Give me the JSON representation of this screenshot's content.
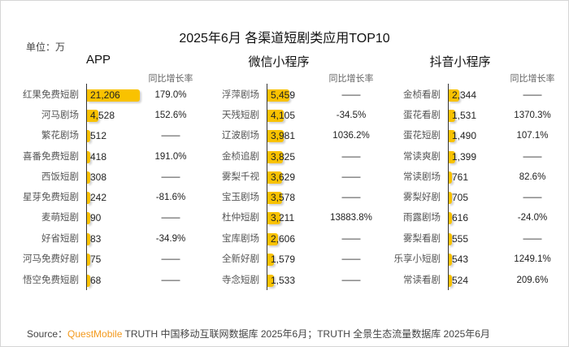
{
  "chart_data": {
    "type": "bar",
    "title": "2025年6月 各渠道短剧类应用TOP10",
    "unit_label": "单位：万",
    "growth_header": "同比增长率",
    "colors": {
      "bar": "#f9c200",
      "brand": "#f39a1e"
    },
    "panels": [
      {
        "name": "APP",
        "categories": [
          "红果免费短剧",
          "河马剧场",
          "繁花剧场",
          "喜番免费短剧",
          "西饭短剧",
          "星芽免费短剧",
          "麦萌短剧",
          "好省短剧",
          "河马免费好剧",
          "悟空免费短剧"
        ],
        "values": [
          21206,
          4528,
          512,
          418,
          308,
          242,
          90,
          83,
          75,
          68
        ],
        "labels": [
          "21,206",
          "4,528",
          "512",
          "418",
          "308",
          "242",
          "90",
          "83",
          "75",
          "68"
        ],
        "growth": [
          "179.0%",
          "152.6%",
          "——",
          "191.0%",
          "——",
          "-81.6%",
          "——",
          "-34.9%",
          "——",
          "——"
        ]
      },
      {
        "name": "微信小程序",
        "categories": [
          "浮萍剧场",
          "天残短剧",
          "辽波剧场",
          "金桢追剧",
          "雾梨千视",
          "宝玉剧场",
          "杜仲短剧",
          "宝库剧场",
          "全新好剧",
          "寺念短剧"
        ],
        "values": [
          5459,
          4105,
          3981,
          3825,
          3629,
          3578,
          3211,
          2606,
          1579,
          1533
        ],
        "labels": [
          "5,459",
          "4,105",
          "3,981",
          "3,825",
          "3,629",
          "3,578",
          "3,211",
          "2,606",
          "1,579",
          "1,533"
        ],
        "growth": [
          "——",
          "-34.5%",
          "1036.2%",
          "——",
          "——",
          "——",
          "13883.8%",
          "——",
          "——",
          "——"
        ]
      },
      {
        "name": "抖音小程序",
        "categories": [
          "金桢看剧",
          "蛋花看剧",
          "蛋花短剧",
          "常读爽剧",
          "常读剧场",
          "雾梨好剧",
          "雨露剧场",
          "雾梨看剧",
          "乐享小短剧",
          "常读看剧"
        ],
        "values": [
          2344,
          1531,
          1490,
          1399,
          761,
          705,
          616,
          555,
          543,
          524
        ],
        "labels": [
          "2,344",
          "1,531",
          "1,490",
          "1,399",
          "761",
          "705",
          "616",
          "555",
          "543",
          "524"
        ],
        "growth": [
          "——",
          "1370.3%",
          "107.1%",
          "——",
          "82.6%",
          "——",
          "-24.0%",
          "——",
          "1249.1%",
          "209.6%"
        ]
      }
    ]
  },
  "source": {
    "prefix": "Source：",
    "brand": "QuestMobile",
    "text": " TRUTH 中国移动互联网数据库 2025年6月；TRUTH 全景生态流量数据库 2025年6月"
  },
  "watermark": "QUESTMOBILE"
}
